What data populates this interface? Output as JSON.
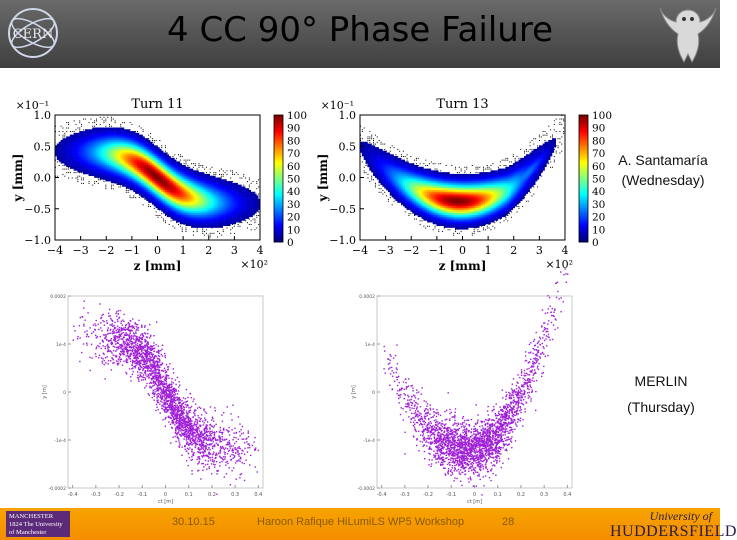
{
  "slide": {
    "title": "4 CC 90° Phase Failure",
    "annotation_top": [
      "A. Santamaría",
      "(Wednesday)"
    ],
    "annotation_bottom": [
      "MERLIN",
      "(Thursday)"
    ]
  },
  "footer": {
    "date": "30.10.15",
    "event": "Haroon Rafique HiLumiLS WP5 Workshop",
    "page": "28",
    "left_logo": "MANCHESTER 1824 The University of Manchester",
    "right_logo": [
      "University of",
      "HUDDERSFIELD"
    ]
  },
  "colors": {
    "accent_orange": "#f59a00",
    "header_gray": "#555555",
    "scatter_purple": "#a020d8"
  },
  "chart_data": [
    {
      "type": "heatmap",
      "title": "Turn 11",
      "xlabel": "z [mm]",
      "ylabel": "y [mm]",
      "x_ticks": [
        "−4",
        "−3",
        "−2",
        "−1",
        "0",
        "1",
        "2",
        "3",
        "4"
      ],
      "x_multiplier": "×10²",
      "y_ticks": [
        "1.0",
        "0.5",
        "0.0",
        "−0.5",
        "−1.0"
      ],
      "y_multiplier": "×10⁻¹",
      "colorbar_ticks": [
        "100",
        "90",
        "80",
        "70",
        "60",
        "50",
        "40",
        "30",
        "20",
        "10",
        "0"
      ],
      "xlim": [
        -4,
        4
      ],
      "ylim": [
        -1,
        1
      ],
      "clim": [
        0,
        100
      ],
      "distribution_shape": "tilted S, high at negative z, low at positive z"
    },
    {
      "type": "heatmap",
      "title": "Turn 13",
      "xlabel": "z [mm]",
      "ylabel": "y [mm]",
      "x_ticks": [
        "−4",
        "−3",
        "−2",
        "−1",
        "0",
        "1",
        "2",
        "3",
        "4"
      ],
      "x_multiplier": "×10²",
      "y_ticks": [
        "1.0",
        "0.5",
        "0.0",
        "−0.5",
        "−1.0"
      ],
      "y_multiplier": "×10⁻¹",
      "colorbar_ticks": [
        "100",
        "90",
        "80",
        "70",
        "60",
        "50",
        "40",
        "30",
        "20",
        "10",
        "0"
      ],
      "xlim": [
        -4,
        4
      ],
      "ylim": [
        -1,
        1
      ],
      "clim": [
        0,
        100
      ],
      "distribution_shape": "U / smile shape with core below zero"
    },
    {
      "type": "scatter",
      "title": "",
      "xlabel": "ct [m]",
      "ylabel": "y [m]",
      "x_ticks": [
        "-0.4",
        "-0.3",
        "-0.2",
        "-0.1",
        "0",
        "0.1",
        "0.2",
        "0.3",
        "0.4"
      ],
      "y_ticks": [
        "0.0002",
        "1e-4",
        "0",
        "-1e-4",
        "-0.0002"
      ],
      "color": "#a020d8",
      "distribution_shape": "tilted S, high at negative ct"
    },
    {
      "type": "scatter",
      "title": "",
      "xlabel": "ct [m]",
      "ylabel": "y [m]",
      "x_ticks": [
        "-0.4",
        "-0.3",
        "-0.2",
        "-0.1",
        "0",
        "0.1",
        "0.2",
        "0.3",
        "0.4"
      ],
      "y_ticks": [
        "0.0002",
        "1e-4",
        "0",
        "-1e-4",
        "-0.0002"
      ],
      "color": "#a020d8",
      "distribution_shape": "U / smile shape with minimum near -0.1"
    }
  ]
}
